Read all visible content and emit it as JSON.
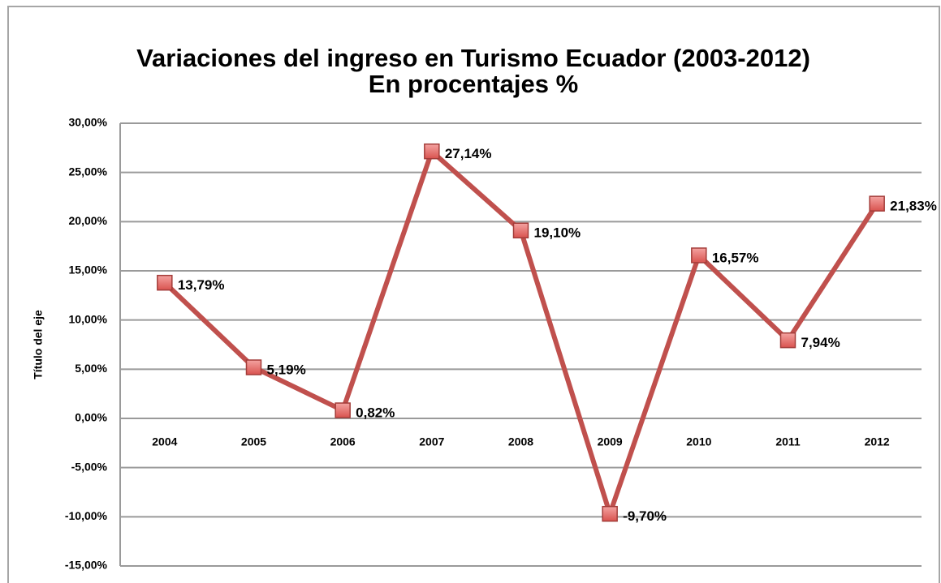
{
  "chart_data": {
    "type": "line",
    "title": "Variaciones del ingreso en Turismo Ecuador (2003-2012)",
    "subtitle": "En procentajes %",
    "y_axis_label": "Título del eje",
    "categories": [
      "2004",
      "2005",
      "2006",
      "2007",
      "2008",
      "2009",
      "2010",
      "2011",
      "2012"
    ],
    "series": [
      {
        "color": "#c0504d",
        "values": [
          13.79,
          5.19,
          0.82,
          27.14,
          19.1,
          -9.7,
          16.57,
          7.94,
          21.83
        ],
        "value_labels": [
          "13,79%",
          "5,19%",
          "0,82%",
          "27,14%",
          "19,10%",
          "-9,70%",
          "16,57%",
          "7,94%",
          "21,83%"
        ]
      }
    ],
    "ylim": [
      -15,
      30
    ],
    "yticks": [
      {
        "value": -15,
        "label": "-15,00%"
      },
      {
        "value": -10,
        "label": "-10,00%"
      },
      {
        "value": -5,
        "label": "-5,00%"
      },
      {
        "value": 0,
        "label": "0,00%"
      },
      {
        "value": 5,
        "label": "5,00%"
      },
      {
        "value": 10,
        "label": "10,00%"
      },
      {
        "value": 15,
        "label": "15,00%"
      },
      {
        "value": 20,
        "label": "20,00%"
      },
      {
        "value": 25,
        "label": "25,00%"
      },
      {
        "value": 30,
        "label": "30,00%"
      }
    ],
    "grid": true
  }
}
